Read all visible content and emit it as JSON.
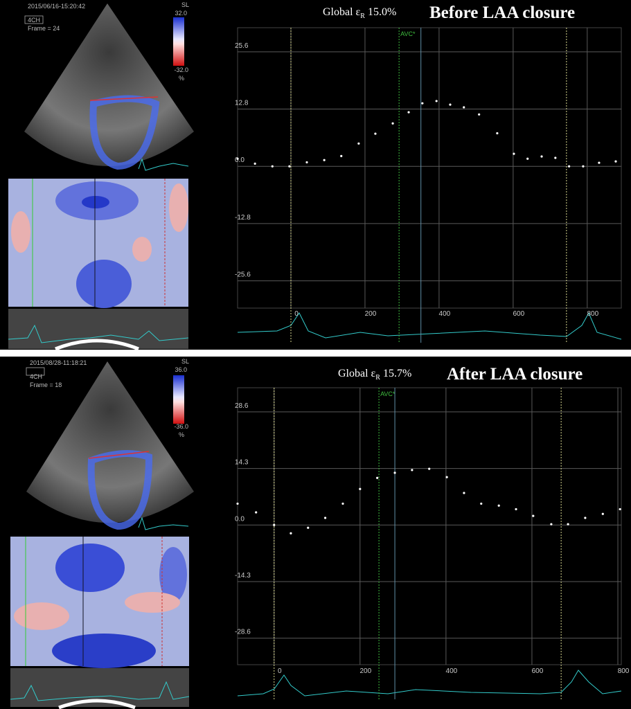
{
  "echo_panels": [
    {
      "timestamp": "2015/06/16-15:20:42",
      "view": "4CH",
      "frame": "Frame = 24",
      "scale_name": "SL",
      "scale_max": "32.0",
      "scale_min": "-32.0",
      "scale_unit": "%"
    },
    {
      "timestamp": "2015/08/28-11:18:21",
      "view": "4CH",
      "frame": "Frame = 18",
      "scale_name": "SL",
      "scale_max": "36.0",
      "scale_min": "-36.0",
      "scale_unit": "%"
    }
  ],
  "chart_data": [
    {
      "type": "scatter",
      "title": "Before LAA closure",
      "strain_label": "Global ε",
      "strain_subscript": "R",
      "strain_value": "15.0%",
      "x": [
        -144,
        -97,
        -50,
        -4,
        43,
        90,
        136,
        183,
        228,
        275,
        318,
        355,
        393,
        430,
        467,
        508,
        557,
        602,
        639,
        677,
        714,
        751,
        789,
        832,
        877
      ],
      "values": [
        1.7,
        0.6,
        0,
        0,
        0.9,
        1.4,
        2.3,
        5.1,
        7.3,
        9.6,
        12.1,
        14.1,
        14.6,
        13.8,
        13.2,
        11.6,
        7.4,
        2.8,
        1.7,
        2.2,
        1.9,
        0,
        0,
        0.8,
        1.1
      ],
      "color": "#ffffff",
      "xlim": [
        -144,
        892
      ],
      "xticks": [
        0,
        200,
        400,
        600,
        800
      ],
      "ylim": [
        -31.7,
        31.0
      ],
      "yticks": [
        {
          "value": 25.6,
          "label": "25.6"
        },
        {
          "value": 12.8,
          "label": "12.8"
        },
        {
          "value": 0,
          "label": "0.0"
        },
        {
          "value": -12.8,
          "label": "-12.8"
        },
        {
          "value": -25.6,
          "label": "-25.6"
        }
      ],
      "grid": true,
      "event_lines": [
        {
          "x": 0,
          "color": "#d8d890",
          "dash": true
        },
        {
          "x": 292,
          "color": "#3fbf3f",
          "dash": true,
          "label": "AVC*"
        },
        {
          "x": 351,
          "color": "#5f8fa8",
          "dash": false
        },
        {
          "x": 744,
          "color": "#d8d890",
          "dash": true
        }
      ]
    },
    {
      "type": "scatter",
      "title": "After LAA closure",
      "strain_label": "Global ε",
      "strain_subscript": "R",
      "strain_value": "15.7%",
      "x": [
        -85,
        -42,
        0,
        39,
        79,
        119,
        160,
        200,
        240,
        281,
        321,
        361,
        402,
        442,
        482,
        523,
        563,
        603,
        645,
        684,
        724,
        765,
        805
      ],
      "values": [
        5.4,
        3.2,
        0,
        -2.1,
        -0.7,
        1.8,
        5.4,
        9.1,
        11.9,
        13.2,
        13.9,
        14.2,
        12.1,
        8.1,
        5.4,
        4.9,
        4.0,
        2.3,
        0.2,
        0.2,
        1.8,
        2.8,
        4.0
      ],
      "color": "#ffffff",
      "xlim": [
        -85,
        808
      ],
      "xticks": [
        0,
        200,
        400,
        600,
        800
      ],
      "ylim": [
        -35.3,
        34.7
      ],
      "yticks": [
        {
          "value": 28.6,
          "label": "28.6"
        },
        {
          "value": 14.3,
          "label": "14.3"
        },
        {
          "value": 0,
          "label": "0.0"
        },
        {
          "value": -14.3,
          "label": "-14.3"
        },
        {
          "value": -28.6,
          "label": "-28.6"
        }
      ],
      "grid": true,
      "event_lines": [
        {
          "x": 0,
          "color": "#d8d890",
          "dash": true
        },
        {
          "x": 244,
          "color": "#3fbf3f",
          "dash": true,
          "label": "AVC*"
        },
        {
          "x": 281,
          "color": "#5f8fa8",
          "dash": false
        },
        {
          "x": 668,
          "color": "#d8d890",
          "dash": true
        }
      ]
    }
  ]
}
